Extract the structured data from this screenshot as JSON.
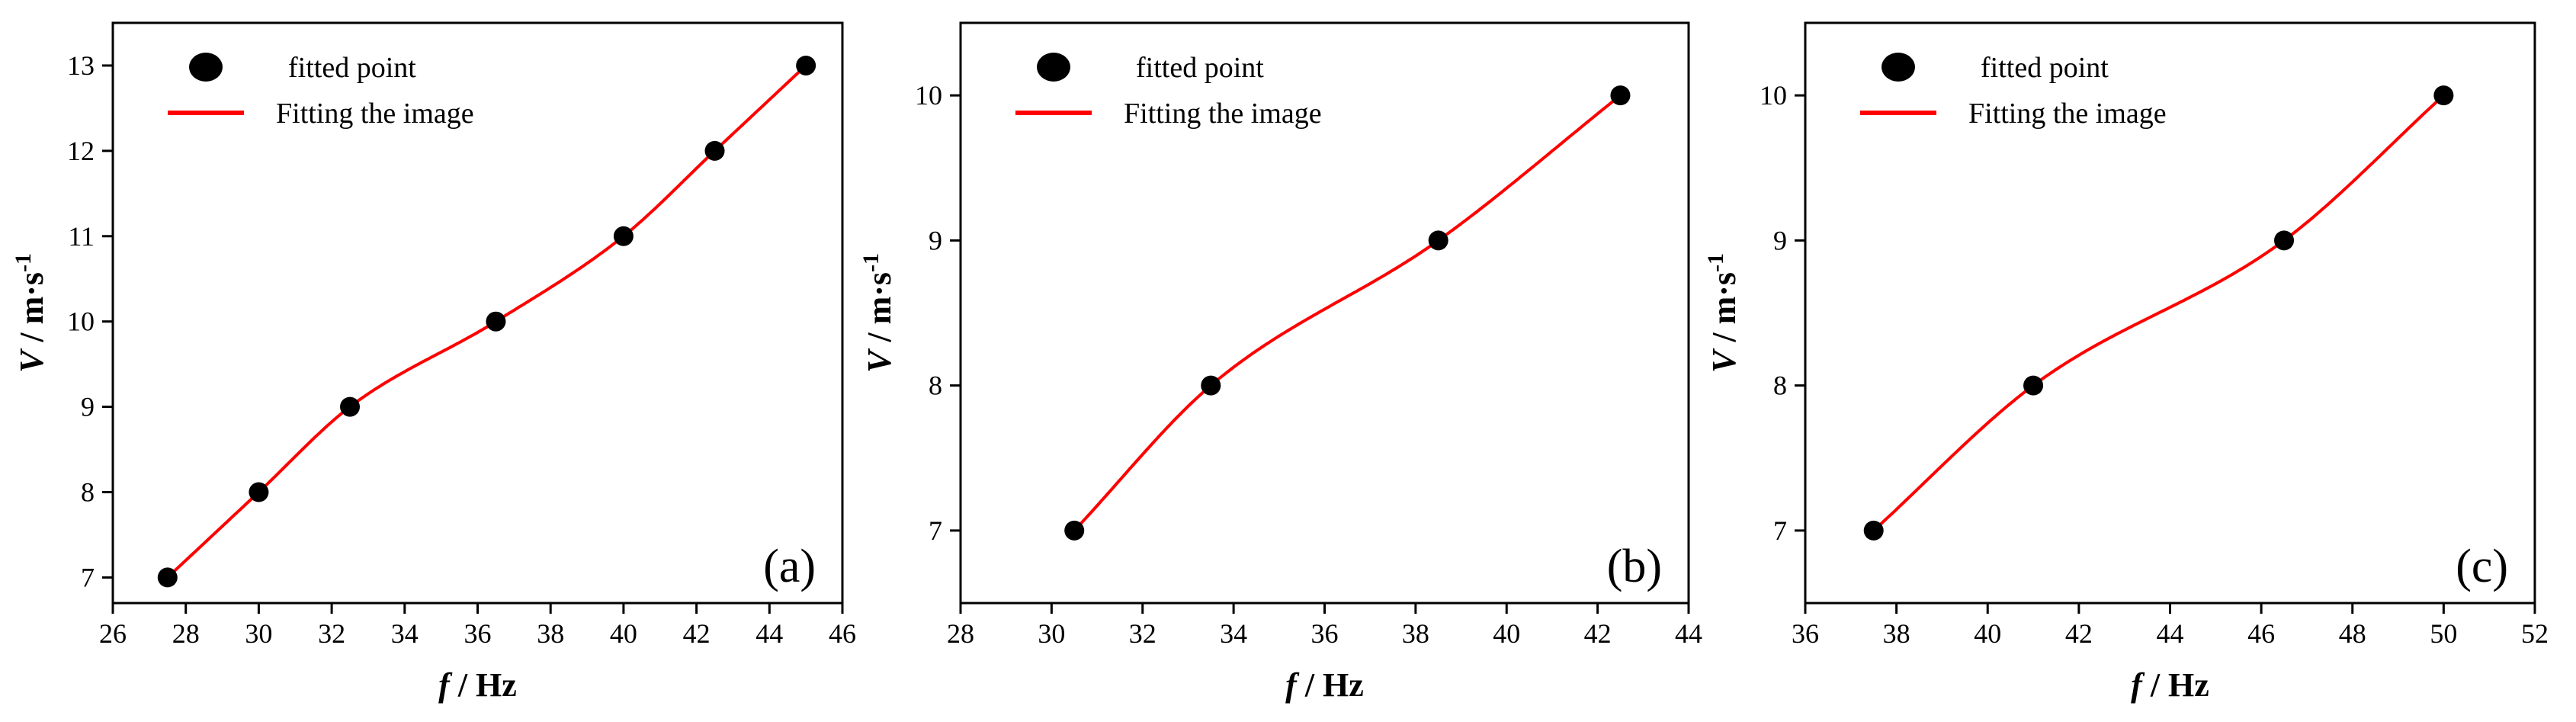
{
  "chart_data": [
    {
      "type": "scatter",
      "panel_label": "(a)",
      "xlabel_main": "f",
      "xlabel_unit": " / Hz",
      "ylabel_main": "V",
      "ylabel_unit": " / m·s",
      "ylabel_sup": "-1",
      "xlim": [
        26,
        46
      ],
      "ylim": [
        6.7,
        13.5
      ],
      "xticks": [
        26,
        28,
        30,
        32,
        34,
        36,
        38,
        40,
        42,
        44,
        46
      ],
      "yticks": [
        7,
        8,
        9,
        10,
        11,
        12,
        13
      ],
      "legend_position": "top-left",
      "series": [
        {
          "name": "fitted point",
          "kind": "points",
          "color": "#000000",
          "x": [
            27.5,
            30,
            32.5,
            36.5,
            40,
            42.5,
            45
          ],
          "y": [
            7,
            8,
            9,
            10,
            11,
            12,
            13
          ]
        },
        {
          "name": "Fitting the image",
          "kind": "smooth-line",
          "color": "#ff0000"
        }
      ]
    },
    {
      "type": "scatter",
      "panel_label": "(b)",
      "xlabel_main": "f",
      "xlabel_unit": " / Hz",
      "ylabel_main": "V",
      "ylabel_unit": " / m·s",
      "ylabel_sup": "-1",
      "xlim": [
        28,
        44
      ],
      "ylim": [
        6.5,
        10.5
      ],
      "xticks": [
        28,
        30,
        32,
        34,
        36,
        38,
        40,
        42,
        44
      ],
      "yticks": [
        7,
        8,
        9,
        10
      ],
      "legend_position": "top-left",
      "series": [
        {
          "name": "fitted point",
          "kind": "points",
          "color": "#000000",
          "x": [
            30.5,
            33.5,
            38.5,
            42.5
          ],
          "y": [
            7,
            8,
            9,
            10
          ]
        },
        {
          "name": "Fitting the image",
          "kind": "smooth-line",
          "color": "#ff0000"
        }
      ]
    },
    {
      "type": "scatter",
      "panel_label": "(c)",
      "xlabel_main": "f",
      "xlabel_unit": " / Hz",
      "ylabel_main": "V",
      "ylabel_unit": " / m·s",
      "ylabel_sup": "-1",
      "xlim": [
        36,
        52
      ],
      "ylim": [
        6.5,
        10.5
      ],
      "xticks": [
        36,
        38,
        40,
        42,
        44,
        46,
        48,
        50,
        52
      ],
      "yticks": [
        7,
        8,
        9,
        10
      ],
      "legend_position": "top-left",
      "series": [
        {
          "name": "fitted point",
          "kind": "points",
          "color": "#000000",
          "x": [
            37.5,
            41,
            46.5,
            50
          ],
          "y": [
            7,
            8,
            9,
            10
          ]
        },
        {
          "name": "Fitting the image",
          "kind": "smooth-line",
          "color": "#ff0000"
        }
      ]
    }
  ]
}
